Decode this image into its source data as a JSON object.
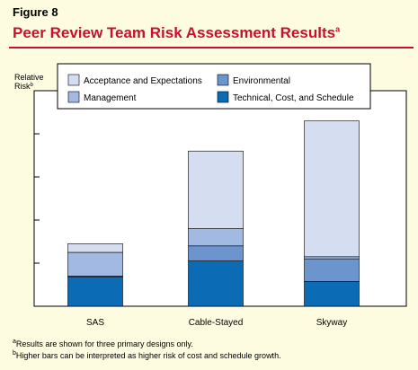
{
  "figure_label": "Figure 8",
  "title": "Peer Review Team Risk Assessment Results",
  "title_footnote_mark": "a",
  "footnotes": [
    {
      "mark": "a",
      "text": "Results are shown for three primary designs only."
    },
    {
      "mark": "b",
      "text": "Higher bars can be interpreted as higher risk of cost and schedule growth."
    }
  ],
  "colors": {
    "Technical, Cost, and Schedule": "#0b6cb5",
    "Environmental": "#6d95cd",
    "Management": "#a2b9e1",
    "Acceptance and Expectations": "#d5def1",
    "title": "#c8102e",
    "background": "#fdfbe0"
  },
  "chart_data": {
    "type": "bar",
    "stacked": true,
    "ylabel": "Relative Risk",
    "ylabel_footnote_mark": "b",
    "ylim": [
      0,
      100
    ],
    "y_tick_labels_shown": false,
    "categories": [
      "SAS",
      "Cable-Stayed",
      "Skyway"
    ],
    "series": [
      {
        "name": "Technical, Cost, and Schedule",
        "values": [
          13.5,
          21,
          11.5
        ]
      },
      {
        "name": "Environmental",
        "values": [
          0.5,
          7,
          10.5
        ]
      },
      {
        "name": "Management",
        "values": [
          11,
          8,
          1
        ]
      },
      {
        "name": "Acceptance and Expectations",
        "values": [
          4,
          36,
          63
        ]
      }
    ],
    "legend": {
      "placement": "top",
      "order": [
        "Acceptance and Expectations",
        "Environmental",
        "Management",
        "Technical, Cost, and Schedule"
      ]
    }
  }
}
